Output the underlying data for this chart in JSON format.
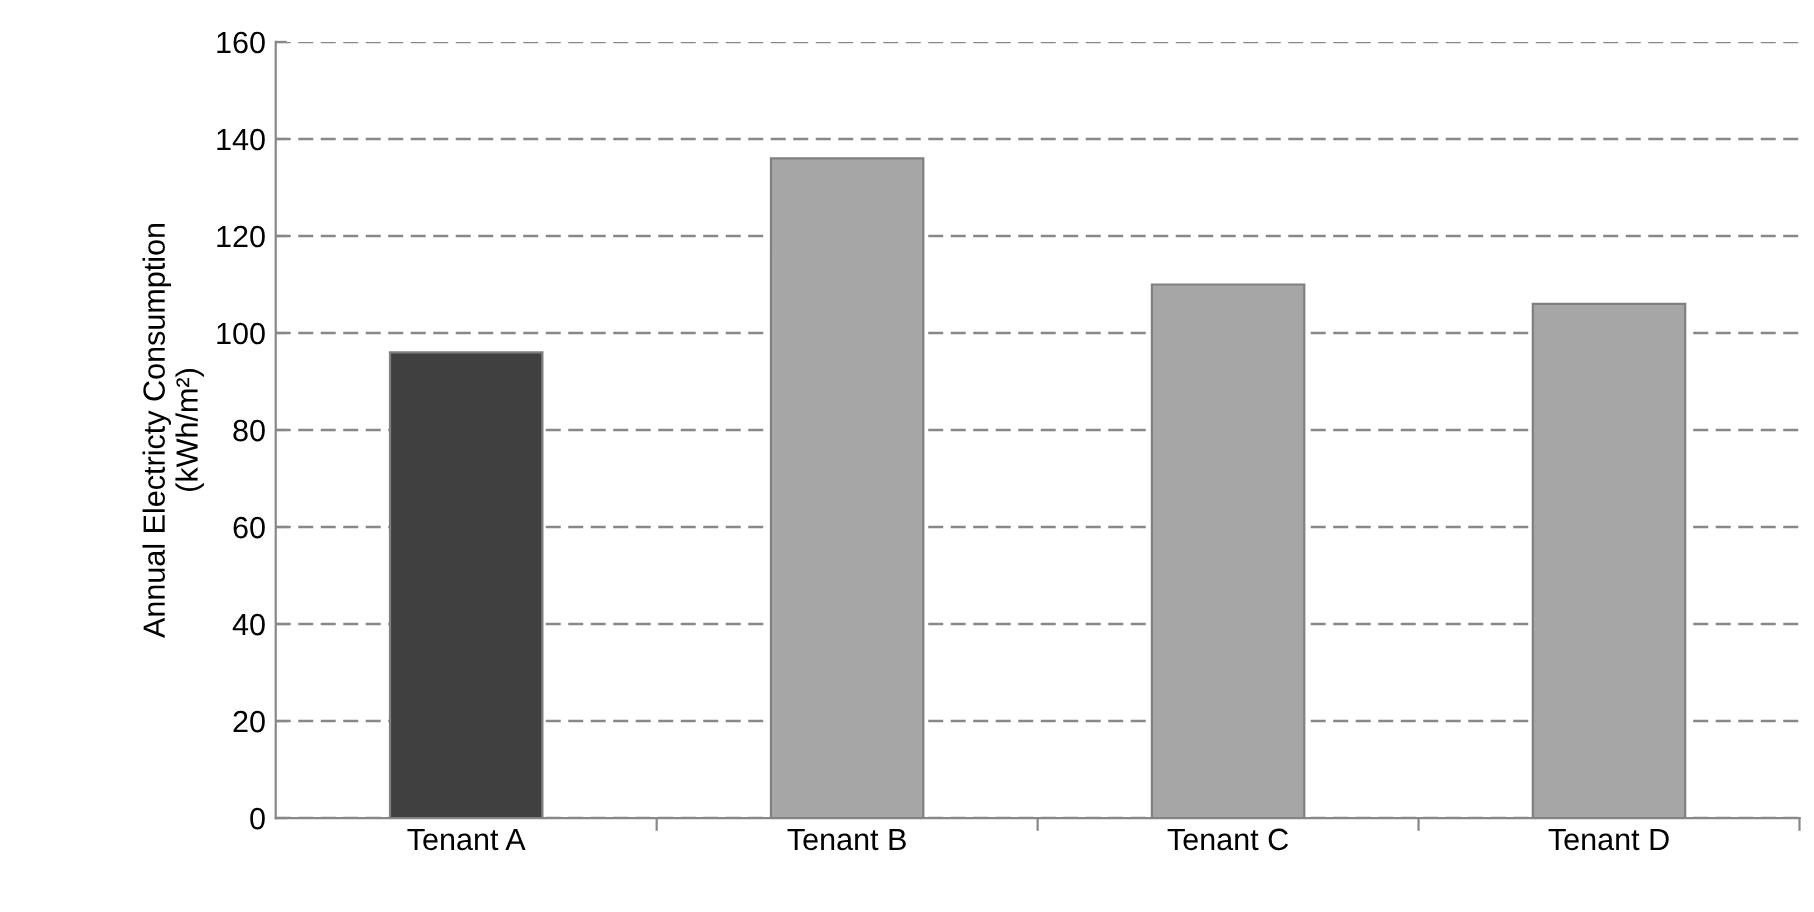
{
  "chart_data": {
    "type": "bar",
    "ylabel": "Annual Electricty Consumption\n(kWh/m²)",
    "categories": [
      "Tenant A",
      "Tenant B",
      "Tenant C",
      "Tenant D"
    ],
    "values": [
      96,
      136,
      110,
      106
    ],
    "colors": [
      "#404040",
      "#a6a6a6",
      "#a6a6a6",
      "#a6a6a6"
    ],
    "ylim": [
      0,
      160
    ],
    "yticks": [
      0,
      20,
      40,
      60,
      80,
      100,
      120,
      140,
      160
    ],
    "grid": "y",
    "line_style": "dashed"
  }
}
